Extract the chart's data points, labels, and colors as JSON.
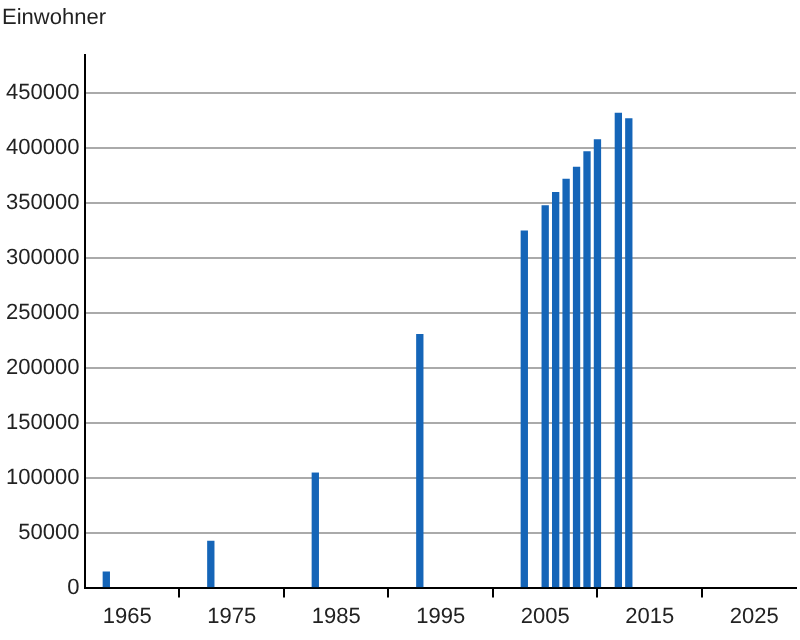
{
  "chart_data": {
    "type": "bar",
    "ylabel": "Einwohner",
    "x": [
      1963,
      1973,
      1983,
      1993,
      2003,
      2005,
      2006,
      2007,
      2008,
      2009,
      2010,
      2012,
      2013
    ],
    "values": [
      14000,
      42000,
      104000,
      230000,
      324000,
      347000,
      359000,
      371000,
      382000,
      396000,
      407000,
      431000,
      426000
    ],
    "color": "#1565b8",
    "xlim": [
      1961,
      2029
    ],
    "xticks": [
      1965,
      1975,
      1985,
      1995,
      2005,
      2015,
      2025
    ],
    "ylim": [
      0,
      484000
    ],
    "yticks": [
      0,
      50000,
      100000,
      150000,
      200000,
      250000,
      300000,
      350000,
      400000,
      450000
    ],
    "grid": "y",
    "legend": false
  }
}
